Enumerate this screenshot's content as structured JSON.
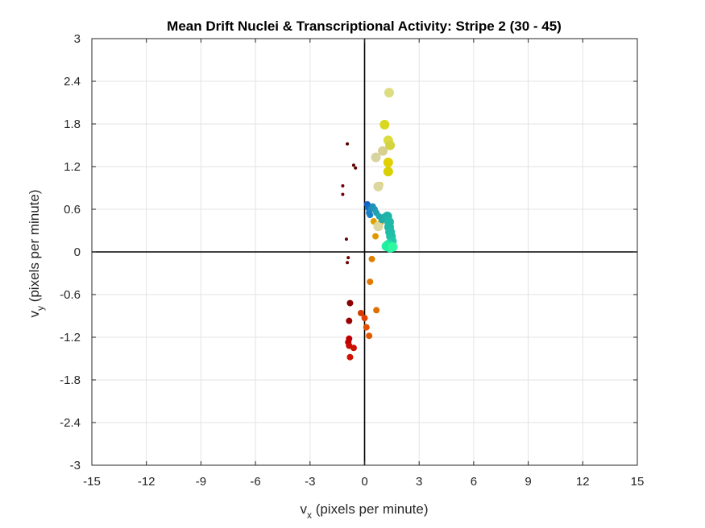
{
  "chart_data": {
    "type": "scatter",
    "title": "Mean Drift Nuclei & Transcriptional Activity: Stripe 2 (30 - 45)",
    "xlabel": {
      "main": "v",
      "sub": "x",
      "rest": " (pixels per minute)"
    },
    "ylabel": {
      "main": "v",
      "sub": "y",
      "rest": " (pixels per minute)"
    },
    "xlim": [
      -15,
      15
    ],
    "ylim": [
      -3,
      3
    ],
    "xticks": [
      "-15",
      "-12",
      "-9",
      "-6",
      "-3",
      "0",
      "3",
      "6",
      "9",
      "12",
      "15"
    ],
    "yticks": [
      "-3",
      "-2.4",
      "-1.8",
      "-1.2",
      "-0.6",
      "0",
      "0.6",
      "1.2",
      "1.8",
      "2.4",
      "3"
    ],
    "grid": true,
    "zero_lines": true,
    "points": [
      {
        "x": -0.95,
        "y": 1.52,
        "size": "small",
        "color": "#5a0000"
      },
      {
        "x": -0.6,
        "y": 1.22,
        "size": "small",
        "color": "#5a0000"
      },
      {
        "x": -0.5,
        "y": 1.18,
        "size": "small",
        "color": "#5a0000"
      },
      {
        "x": -1.2,
        "y": 0.93,
        "size": "small",
        "color": "#6a0000"
      },
      {
        "x": -1.2,
        "y": 0.81,
        "size": "small",
        "color": "#6a0000"
      },
      {
        "x": -1.0,
        "y": 0.18,
        "size": "small",
        "color": "#6a0000"
      },
      {
        "x": -0.9,
        "y": -0.08,
        "size": "small",
        "color": "#6a0000"
      },
      {
        "x": -0.95,
        "y": -0.15,
        "size": "small",
        "color": "#6a0000"
      },
      {
        "x": -0.8,
        "y": -0.72,
        "size": "medium",
        "color": "#8a0000"
      },
      {
        "x": -0.85,
        "y": -0.97,
        "size": "medium",
        "color": "#9a0000"
      },
      {
        "x": -0.85,
        "y": -1.22,
        "size": "medium",
        "color": "#c00000"
      },
      {
        "x": -0.9,
        "y": -1.27,
        "size": "medium",
        "color": "#c00000"
      },
      {
        "x": -0.85,
        "y": -1.32,
        "size": "medium",
        "color": "#c80a00"
      },
      {
        "x": -0.6,
        "y": -1.35,
        "size": "medium",
        "color": "#cc1200"
      },
      {
        "x": -0.8,
        "y": -1.48,
        "size": "medium",
        "color": "#d01000"
      },
      {
        "x": -0.2,
        "y": -0.86,
        "size": "medium",
        "color": "#d83a00"
      },
      {
        "x": 0.0,
        "y": -0.93,
        "size": "medium",
        "color": "#e04000"
      },
      {
        "x": 0.1,
        "y": -1.06,
        "size": "medium",
        "color": "#e05000"
      },
      {
        "x": 0.25,
        "y": -1.18,
        "size": "medium",
        "color": "#e05a00"
      },
      {
        "x": 0.65,
        "y": -0.82,
        "size": "medium",
        "color": "#e07000"
      },
      {
        "x": 0.3,
        "y": -0.42,
        "size": "medium",
        "color": "#e07a00"
      },
      {
        "x": 0.4,
        "y": -0.1,
        "size": "medium",
        "color": "#e08000"
      },
      {
        "x": 0.6,
        "y": 0.22,
        "size": "medium",
        "color": "#e09a00"
      },
      {
        "x": 0.5,
        "y": 0.43,
        "size": "medium",
        "color": "#e0a000"
      },
      {
        "x": 0.9,
        "y": 0.42,
        "size": "medium",
        "color": "#d8a800"
      },
      {
        "x": 0.85,
        "y": 0.94,
        "size": "medium",
        "color": "#d8c000"
      },
      {
        "x": 0.75,
        "y": 0.92,
        "size": "large",
        "color": "#dcd6a0"
      },
      {
        "x": 0.75,
        "y": 0.36,
        "size": "large",
        "color": "#dcd6a0"
      },
      {
        "x": 0.62,
        "y": 1.33,
        "size": "large",
        "color": "#d8d4a0"
      },
      {
        "x": 1.0,
        "y": 1.42,
        "size": "large",
        "color": "#d8d090"
      },
      {
        "x": 1.3,
        "y": 1.26,
        "size": "large",
        "color": "#e0d000"
      },
      {
        "x": 1.3,
        "y": 1.13,
        "size": "large",
        "color": "#d8d000"
      },
      {
        "x": 1.3,
        "y": 1.57,
        "size": "large",
        "color": "#dcdc40"
      },
      {
        "x": 1.4,
        "y": 1.5,
        "size": "large",
        "color": "#d4d440"
      },
      {
        "x": 1.1,
        "y": 1.79,
        "size": "large",
        "color": "#d8d820"
      },
      {
        "x": 1.35,
        "y": 2.24,
        "size": "large",
        "color": "#dcdc80"
      },
      {
        "x": 0.15,
        "y": 0.67,
        "size": "medium",
        "color": "#1060c8"
      },
      {
        "x": 0.2,
        "y": 0.62,
        "size": "medium",
        "color": "#1070c8"
      },
      {
        "x": 0.25,
        "y": 0.55,
        "size": "medium",
        "color": "#1878c8"
      },
      {
        "x": 0.3,
        "y": 0.52,
        "size": "medium",
        "color": "#1880c8"
      },
      {
        "x": 0.35,
        "y": 0.6,
        "size": "medium",
        "color": "#2088c0"
      },
      {
        "x": 0.45,
        "y": 0.64,
        "size": "medium",
        "color": "#2090b8"
      },
      {
        "x": 0.55,
        "y": 0.6,
        "size": "medium",
        "color": "#2098b8"
      },
      {
        "x": 0.65,
        "y": 0.55,
        "size": "medium",
        "color": "#20a0b0"
      },
      {
        "x": 0.8,
        "y": 0.5,
        "size": "medium",
        "color": "#20a8b0"
      },
      {
        "x": 0.95,
        "y": 0.45,
        "size": "medium",
        "color": "#20a8a8"
      },
      {
        "x": 1.15,
        "y": 0.48,
        "size": "large",
        "color": "#20b0a8"
      },
      {
        "x": 1.25,
        "y": 0.5,
        "size": "large",
        "color": "#20b4a8"
      },
      {
        "x": 1.35,
        "y": 0.42,
        "size": "large",
        "color": "#20b8a8"
      },
      {
        "x": 1.35,
        "y": 0.35,
        "size": "large",
        "color": "#20b8a8"
      },
      {
        "x": 1.4,
        "y": 0.28,
        "size": "large",
        "color": "#20bca8"
      },
      {
        "x": 1.45,
        "y": 0.22,
        "size": "large",
        "color": "#20c0a8"
      },
      {
        "x": 1.5,
        "y": 0.15,
        "size": "large",
        "color": "#20c8a8"
      },
      {
        "x": 1.3,
        "y": 0.1,
        "size": "large",
        "color": "#20e0a0"
      },
      {
        "x": 1.2,
        "y": 0.08,
        "size": "large",
        "color": "#20f0a0"
      },
      {
        "x": 1.4,
        "y": 0.06,
        "size": "large",
        "color": "#20f0a0"
      },
      {
        "x": 1.55,
        "y": 0.07,
        "size": "large",
        "color": "#30f8a0"
      }
    ]
  }
}
